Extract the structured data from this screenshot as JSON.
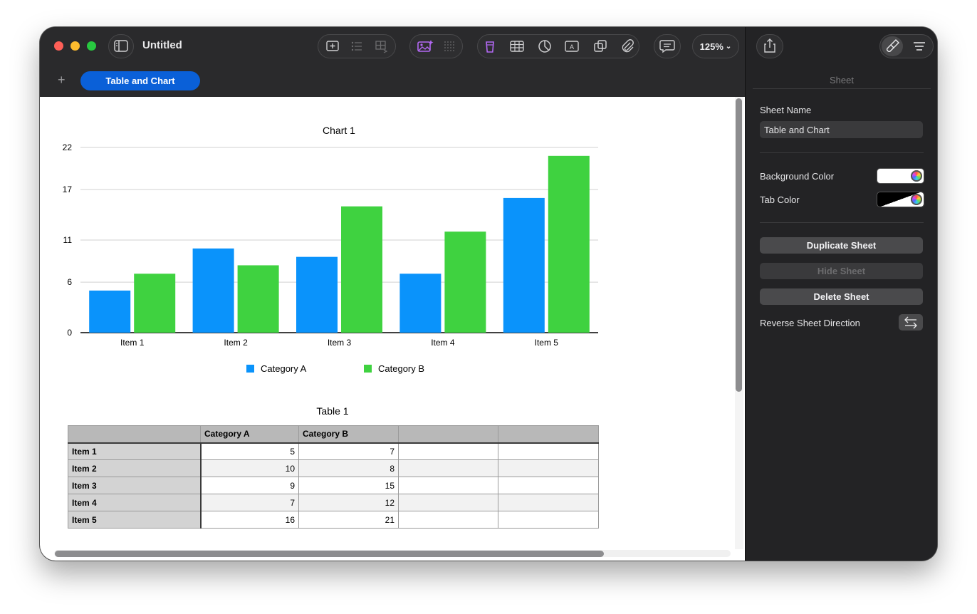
{
  "window": {
    "title": "Untitled",
    "zoom": "125%"
  },
  "tabs": {
    "add_icon": "plus-icon",
    "active_sheet": "Table and Chart"
  },
  "chart": {
    "title": "Chart 1",
    "legend": [
      "Category A",
      "Category B"
    ],
    "colors": {
      "category_a": "#0a93fb",
      "category_b": "#3fd240"
    }
  },
  "chart_data": {
    "type": "bar",
    "title": "Chart 1",
    "categories": [
      "Item 1",
      "Item 2",
      "Item 3",
      "Item 4",
      "Item 5"
    ],
    "series": [
      {
        "name": "Category A",
        "values": [
          5,
          10,
          9,
          7,
          16
        ]
      },
      {
        "name": "Category B",
        "values": [
          7,
          8,
          15,
          12,
          21
        ]
      }
    ],
    "yticks": [
      "0",
      "6",
      "11",
      "17",
      "22"
    ],
    "ylim": [
      0,
      22
    ],
    "grid": true,
    "legend_position": "bottom"
  },
  "table": {
    "title": "Table 1",
    "headers": [
      "",
      "Category A",
      "Category B",
      "",
      ""
    ],
    "rows": [
      {
        "label": "Item 1",
        "a": "5",
        "b": "7"
      },
      {
        "label": "Item 2",
        "a": "10",
        "b": "8"
      },
      {
        "label": "Item 3",
        "a": "9",
        "b": "15"
      },
      {
        "label": "Item 4",
        "a": "7",
        "b": "12"
      },
      {
        "label": "Item 5",
        "a": "16",
        "b": "21"
      }
    ]
  },
  "inspector": {
    "section_title": "Sheet",
    "sheet_name_label": "Sheet Name",
    "sheet_name_value": "Table and Chart",
    "background_color_label": "Background Color",
    "tab_color_label": "Tab Color",
    "duplicate_label": "Duplicate Sheet",
    "hide_label": "Hide Sheet",
    "delete_label": "Delete Sheet",
    "reverse_label": "Reverse Sheet Direction"
  }
}
